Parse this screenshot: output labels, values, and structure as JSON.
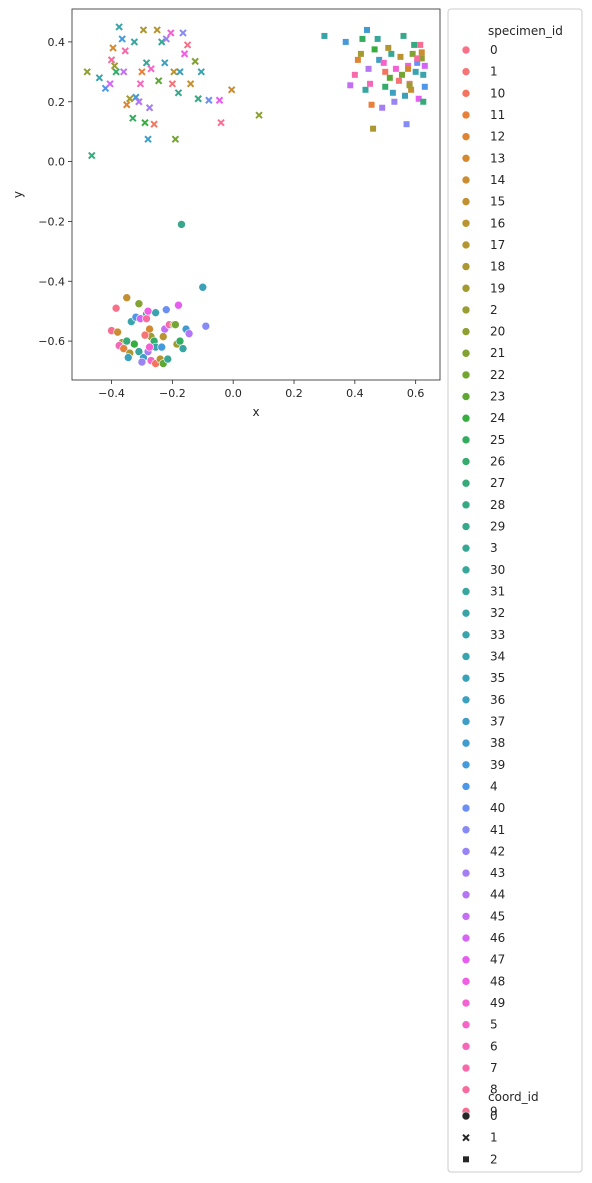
{
  "chart_data": {
    "type": "scatter",
    "xlabel": "x",
    "ylabel": "y",
    "xlim": [
      -0.53,
      0.68
    ],
    "ylim": [
      -0.73,
      0.51
    ],
    "xticks": [
      -0.4,
      -0.2,
      0.0,
      0.2,
      0.4,
      0.6
    ],
    "xtick_labels": [
      "−0.4",
      "−0.2",
      "0.0",
      "0.2",
      "0.4",
      "0.6"
    ],
    "yticks": [
      -0.6,
      -0.4,
      -0.2,
      0.0,
      0.2,
      0.4
    ],
    "ytick_labels": [
      "−0.6",
      "−0.4",
      "−0.2",
      "0.0",
      "0.2",
      "0.4"
    ],
    "grid": false,
    "legend_placement": "outside-right",
    "legend": {
      "hue_title": "specimen_id",
      "hue_entries": [
        "0",
        "1",
        "10",
        "11",
        "12",
        "13",
        "14",
        "15",
        "16",
        "17",
        "18",
        "19",
        "2",
        "20",
        "21",
        "22",
        "23",
        "24",
        "25",
        "26",
        "27",
        "28",
        "29",
        "3",
        "30",
        "31",
        "32",
        "33",
        "34",
        "35",
        "36",
        "37",
        "38",
        "39",
        "4",
        "40",
        "41",
        "42",
        "43",
        "44",
        "45",
        "46",
        "47",
        "48",
        "49",
        "5",
        "6",
        "7",
        "8",
        "9"
      ],
      "hue_colors": [
        "#f77189",
        "#f67376",
        "#f5745f",
        "#e8803a",
        "#de8432",
        "#d48931",
        "#cb8d31",
        "#c39031",
        "#bb9331",
        "#b39532",
        "#ab9832",
        "#a39a32",
        "#9a9d32",
        "#8f9f32",
        "#82a232",
        "#73a532",
        "#5ca832",
        "#36ad3e",
        "#34ac5d",
        "#35ab6d",
        "#36aa79",
        "#36a983",
        "#37a88c",
        "#37a794",
        "#38a69a",
        "#38a5a1",
        "#39a4a7",
        "#3aa3ac",
        "#3aa3b2",
        "#3ba1b8",
        "#3ca0bf",
        "#3e9ec7",
        "#409cd0",
        "#449ada",
        "#4e96e7",
        "#6c8ff4",
        "#868af4",
        "#9884f4",
        "#a67ef4",
        "#b476f4",
        "#c46ef4",
        "#d564f4",
        "#e65df0",
        "#f05ee3",
        "#f461d4",
        "#f564c7",
        "#f567b9",
        "#f66aac",
        "#f66c9f",
        "#f76e93"
      ],
      "style_title": "coord_id",
      "style_entries": [
        "0",
        "1",
        "2"
      ],
      "style_markers": [
        "circle",
        "x",
        "square"
      ]
    },
    "series": [
      {
        "name": "0",
        "marker": "circle",
        "color_key": "mixed",
        "points": [
          [
            -0.385,
            -0.49
          ],
          [
            -0.35,
            -0.455
          ],
          [
            -0.31,
            -0.475
          ],
          [
            -0.285,
            -0.51
          ],
          [
            -0.255,
            -0.505
          ],
          [
            -0.22,
            -0.495
          ],
          [
            -0.18,
            -0.48
          ],
          [
            -0.4,
            -0.565
          ],
          [
            -0.38,
            -0.57
          ],
          [
            -0.365,
            -0.605
          ],
          [
            -0.35,
            -0.6
          ],
          [
            -0.335,
            -0.535
          ],
          [
            -0.32,
            -0.52
          ],
          [
            -0.305,
            -0.525
          ],
          [
            -0.285,
            -0.525
          ],
          [
            -0.275,
            -0.56
          ],
          [
            -0.27,
            -0.585
          ],
          [
            -0.26,
            -0.6
          ],
          [
            -0.255,
            -0.62
          ],
          [
            -0.235,
            -0.62
          ],
          [
            -0.225,
            -0.56
          ],
          [
            -0.21,
            -0.545
          ],
          [
            -0.195,
            -0.545
          ],
          [
            -0.185,
            -0.61
          ],
          [
            -0.175,
            -0.6
          ],
          [
            -0.165,
            -0.625
          ],
          [
            -0.155,
            -0.56
          ],
          [
            -0.145,
            -0.575
          ],
          [
            -0.375,
            -0.615
          ],
          [
            -0.36,
            -0.625
          ],
          [
            -0.34,
            -0.64
          ],
          [
            -0.325,
            -0.61
          ],
          [
            -0.31,
            -0.635
          ],
          [
            -0.295,
            -0.655
          ],
          [
            -0.28,
            -0.635
          ],
          [
            -0.27,
            -0.665
          ],
          [
            -0.255,
            -0.675
          ],
          [
            -0.24,
            -0.66
          ],
          [
            -0.23,
            -0.675
          ],
          [
            -0.215,
            -0.66
          ],
          [
            -0.345,
            -0.655
          ],
          [
            -0.3,
            -0.67
          ],
          [
            -0.275,
            -0.62
          ],
          [
            -0.29,
            -0.58
          ],
          [
            -0.23,
            -0.585
          ],
          [
            -0.19,
            -0.545
          ],
          [
            -0.17,
            -0.21
          ],
          [
            -0.1,
            -0.42
          ],
          [
            -0.09,
            -0.55
          ],
          [
            -0.28,
            -0.5
          ]
        ]
      },
      {
        "name": "1",
        "marker": "x",
        "color_key": "mixed",
        "points": [
          [
            -0.48,
            0.3
          ],
          [
            -0.465,
            0.02
          ],
          [
            -0.44,
            0.28
          ],
          [
            -0.42,
            0.245
          ],
          [
            -0.405,
            0.26
          ],
          [
            -0.4,
            0.34
          ],
          [
            -0.395,
            0.38
          ],
          [
            -0.39,
            0.32
          ],
          [
            -0.385,
            0.3
          ],
          [
            -0.375,
            0.45
          ],
          [
            -0.365,
            0.41
          ],
          [
            -0.36,
            0.3
          ],
          [
            -0.355,
            0.37
          ],
          [
            -0.35,
            0.19
          ],
          [
            -0.34,
            0.21
          ],
          [
            -0.33,
            0.145
          ],
          [
            -0.325,
            0.4
          ],
          [
            -0.32,
            0.215
          ],
          [
            -0.31,
            0.2
          ],
          [
            -0.305,
            0.26
          ],
          [
            -0.3,
            0.3
          ],
          [
            -0.295,
            0.44
          ],
          [
            -0.29,
            0.13
          ],
          [
            -0.285,
            0.33
          ],
          [
            -0.28,
            0.075
          ],
          [
            -0.275,
            0.18
          ],
          [
            -0.27,
            0.31
          ],
          [
            -0.26,
            0.125
          ],
          [
            -0.25,
            0.44
          ],
          [
            -0.245,
            0.27
          ],
          [
            -0.235,
            0.4
          ],
          [
            -0.225,
            0.33
          ],
          [
            -0.22,
            0.41
          ],
          [
            -0.205,
            0.43
          ],
          [
            -0.2,
            0.26
          ],
          [
            -0.195,
            0.3
          ],
          [
            -0.19,
            0.075
          ],
          [
            -0.18,
            0.23
          ],
          [
            -0.175,
            0.3
          ],
          [
            -0.165,
            0.43
          ],
          [
            -0.16,
            0.36
          ],
          [
            -0.15,
            0.39
          ],
          [
            -0.14,
            0.26
          ],
          [
            -0.125,
            0.335
          ],
          [
            -0.115,
            0.21
          ],
          [
            -0.105,
            0.3
          ],
          [
            -0.08,
            0.205
          ],
          [
            -0.045,
            0.205
          ],
          [
            -0.04,
            0.13
          ],
          [
            -0.005,
            0.24
          ],
          [
            0.085,
            0.155
          ]
        ]
      },
      {
        "name": "2",
        "marker": "square",
        "color_key": "mixed",
        "points": [
          [
            0.3,
            0.42
          ],
          [
            0.37,
            0.4
          ],
          [
            0.385,
            0.255
          ],
          [
            0.4,
            0.29
          ],
          [
            0.41,
            0.34
          ],
          [
            0.42,
            0.36
          ],
          [
            0.425,
            0.41
          ],
          [
            0.435,
            0.24
          ],
          [
            0.44,
            0.44
          ],
          [
            0.445,
            0.31
          ],
          [
            0.45,
            0.26
          ],
          [
            0.455,
            0.19
          ],
          [
            0.46,
            0.11
          ],
          [
            0.465,
            0.375
          ],
          [
            0.475,
            0.41
          ],
          [
            0.48,
            0.34
          ],
          [
            0.49,
            0.18
          ],
          [
            0.495,
            0.33
          ],
          [
            0.5,
            0.3
          ],
          [
            0.51,
            0.38
          ],
          [
            0.515,
            0.28
          ],
          [
            0.52,
            0.36
          ],
          [
            0.525,
            0.23
          ],
          [
            0.53,
            0.2
          ],
          [
            0.535,
            0.31
          ],
          [
            0.545,
            0.27
          ],
          [
            0.55,
            0.35
          ],
          [
            0.555,
            0.29
          ],
          [
            0.56,
            0.42
          ],
          [
            0.565,
            0.22
          ],
          [
            0.57,
            0.125
          ],
          [
            0.575,
            0.32
          ],
          [
            0.58,
            0.26
          ],
          [
            0.585,
            0.24
          ],
          [
            0.59,
            0.36
          ],
          [
            0.595,
            0.39
          ],
          [
            0.6,
            0.3
          ],
          [
            0.605,
            0.33
          ],
          [
            0.61,
            0.21
          ],
          [
            0.615,
            0.39
          ],
          [
            0.62,
            0.365
          ],
          [
            0.62,
            0.345
          ],
          [
            0.625,
            0.2
          ],
          [
            0.625,
            0.29
          ],
          [
            0.63,
            0.25
          ],
          [
            0.63,
            0.32
          ],
          [
            0.605,
            0.345
          ],
          [
            0.575,
            0.31
          ],
          [
            0.58,
            0.255
          ],
          [
            0.5,
            0.25
          ]
        ]
      }
    ]
  }
}
